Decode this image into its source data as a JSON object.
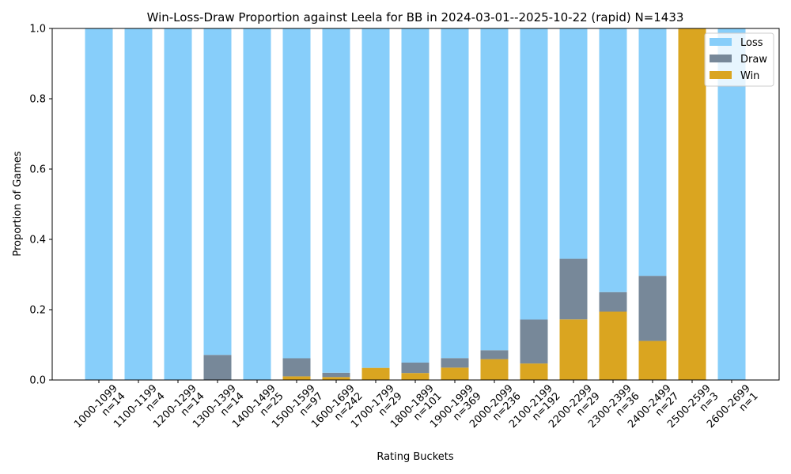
{
  "chart_data": {
    "type": "bar",
    "stacked": true,
    "title": "Win-Loss-Draw Proportion against Leela for BB in 2024-03-01--2025-10-22 (rapid) N=1433",
    "xlabel": "Rating Buckets",
    "ylabel": "Proportion of Games",
    "ylim": [
      0,
      1.0
    ],
    "yticks": [
      "0.0",
      "0.2",
      "0.4",
      "0.6",
      "0.8",
      "1.0"
    ],
    "grid": false,
    "legend_position": "top-right",
    "categories": [
      "1000-1099",
      "1100-1199",
      "1200-1299",
      "1300-1399",
      "1400-1499",
      "1500-1599",
      "1600-1699",
      "1700-1799",
      "1800-1899",
      "1900-1999",
      "2000-2099",
      "2100-2199",
      "2200-2299",
      "2300-2399",
      "2400-2499",
      "2500-2599",
      "2600-2699"
    ],
    "counts": [
      "n=14",
      "n=4",
      "n=14",
      "n=14",
      "n=25",
      "n=97",
      "n=242",
      "n=29",
      "n=101",
      "n=369",
      "n=236",
      "n=192",
      "n=29",
      "n=36",
      "n=27",
      "n=3",
      "n=1"
    ],
    "series": [
      {
        "name": "Win",
        "color": "#DAA520",
        "values": [
          0,
          0,
          0,
          0,
          0,
          0.0103,
          0.0083,
          0.0345,
          0.0198,
          0.0352,
          0.0593,
          0.0469,
          0.1724,
          0.1944,
          0.1111,
          1.0,
          0
        ]
      },
      {
        "name": "Draw",
        "color": "#778899",
        "values": [
          0,
          0,
          0,
          0.0714,
          0,
          0.0515,
          0.0124,
          0,
          0.0297,
          0.0271,
          0.0254,
          0.125,
          0.1724,
          0.0556,
          0.1852,
          0,
          0
        ]
      },
      {
        "name": "Loss",
        "color": "#87CEFA",
        "values": [
          1,
          1,
          1,
          0.9286,
          1,
          0.9381,
          0.9793,
          0.9655,
          0.9505,
          0.9377,
          0.9153,
          0.8281,
          0.6552,
          0.75,
          0.7037,
          0,
          1
        ]
      }
    ],
    "legend_order": [
      "Loss",
      "Draw",
      "Win"
    ]
  }
}
